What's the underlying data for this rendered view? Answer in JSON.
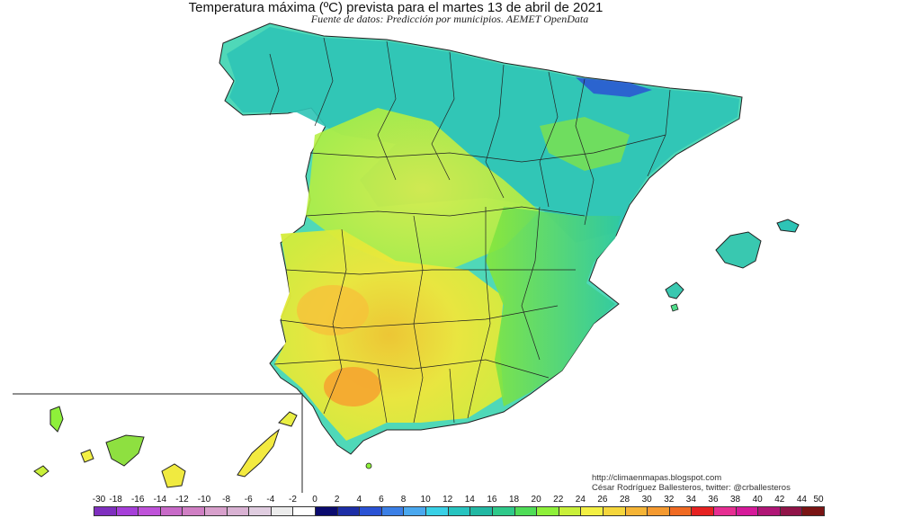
{
  "title": "Temperatura máxima (ºC) prevista para el martes 13 de abril de 2021",
  "subtitle": "Fuente de datos: Predicción por municipios. AEMET OpenData",
  "credits": {
    "url": "http://climaenmapas.blogspot.com",
    "author": "César Rodríguez Ballesteros, twitter: @crballesteros"
  },
  "legend": {
    "labels": [
      "-30",
      "-18",
      "-16",
      "-14",
      "-12",
      "-10",
      "-8",
      "-6",
      "-4",
      "-2",
      "0",
      "2",
      "4",
      "6",
      "8",
      "10",
      "12",
      "14",
      "16",
      "18",
      "20",
      "22",
      "24",
      "26",
      "28",
      "30",
      "32",
      "34",
      "36",
      "38",
      "40",
      "42",
      "44",
      "50"
    ],
    "colors": [
      "#7f2fbf",
      "#a63fd9",
      "#bf52d9",
      "#c86ac8",
      "#d07fc4",
      "#d8a0cc",
      "#d9b2d3",
      "#e0cde0",
      "#ececec",
      "#ffffff",
      "#0b0b6e",
      "#1d2ea6",
      "#2a52d4",
      "#3b7fe6",
      "#4aa8ef",
      "#39d0e6",
      "#27c4c0",
      "#22b8a3",
      "#2fc98a",
      "#4fdc57",
      "#8ef03a",
      "#c9f03a",
      "#f3f044",
      "#f5d63c",
      "#f5b436",
      "#f59a30",
      "#f06a22",
      "#e62222",
      "#e62e92",
      "#d61a9a",
      "#b01676",
      "#901448",
      "#7a1414"
    ]
  }
}
